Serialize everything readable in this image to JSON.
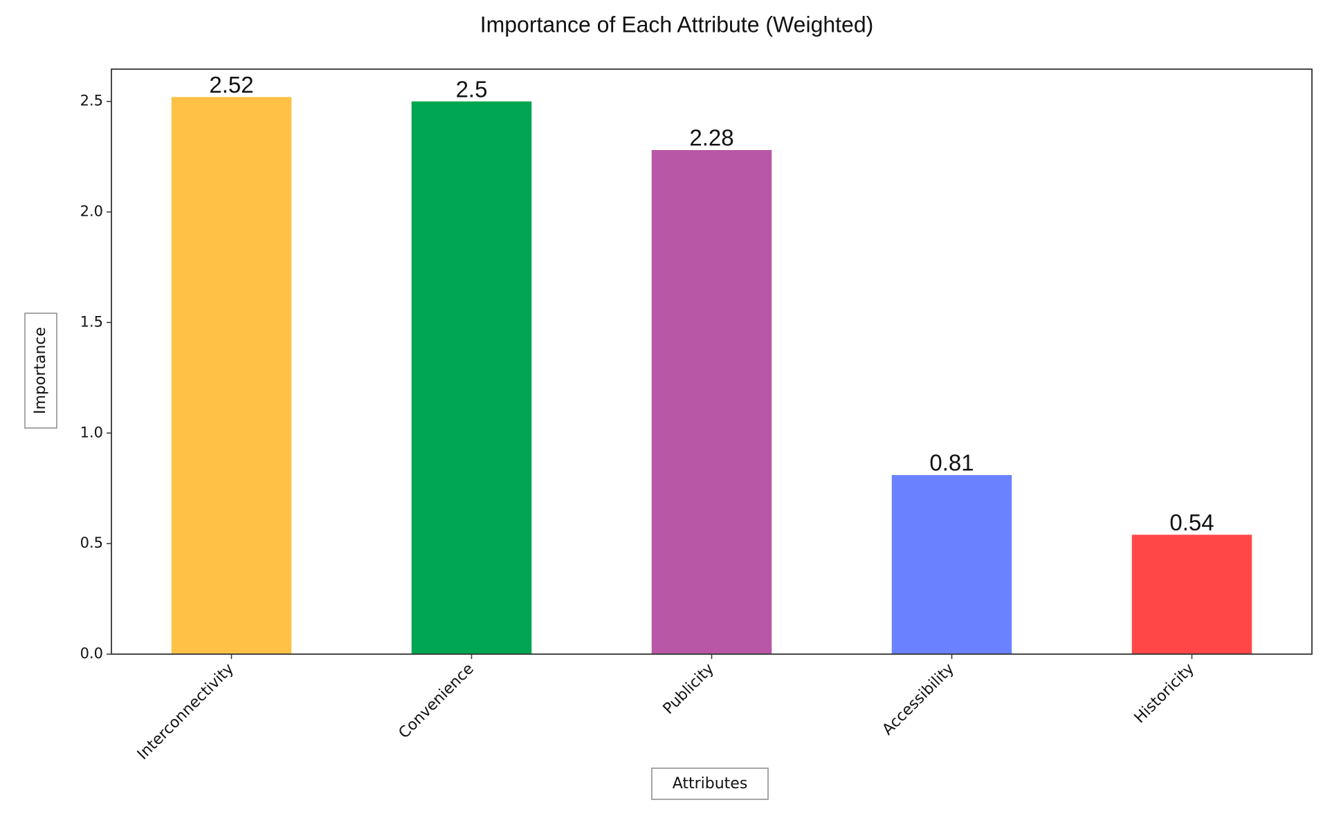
{
  "chart_data": {
    "type": "bar",
    "title": "Importance of Each Attribute (Weighted)",
    "x_label": "Attributes",
    "y_label": "Importance",
    "categories": [
      "Interconnectivity",
      "Convenience",
      "Publicity",
      "Accessibility",
      "Historicity"
    ],
    "values": [
      2.52,
      2.5,
      2.28,
      0.81,
      0.54
    ],
    "colors": [
      "#ffc246",
      "#00a651",
      "#b857a6",
      "#6a82ff",
      "#ff4747"
    ],
    "ylim": [
      0,
      2.646
    ],
    "yticks": [
      {
        "value": 0,
        "label": "0.0"
      },
      0.5,
      {
        "value": 1,
        "label": "1.0"
      },
      1.5,
      {
        "value": 2,
        "label": "2.0"
      },
      2.5
    ]
  }
}
